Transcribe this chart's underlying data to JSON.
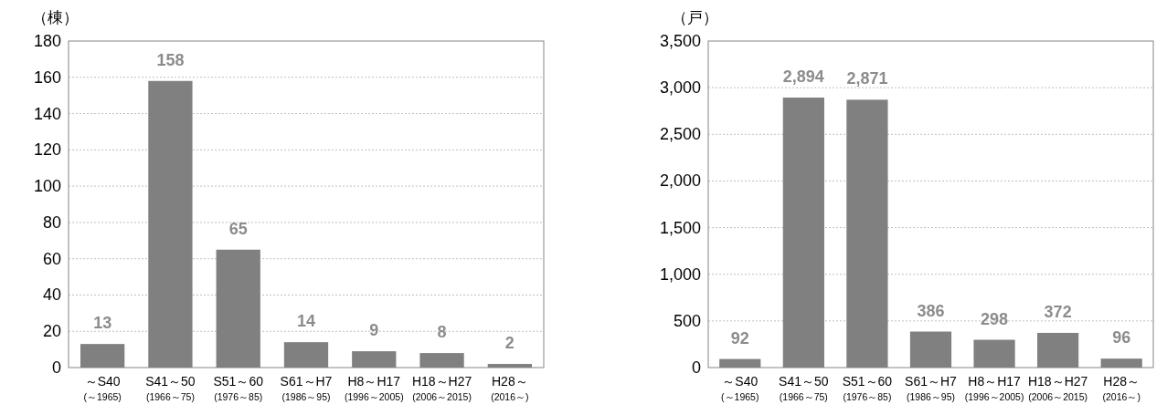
{
  "chart_data": [
    {
      "type": "bar",
      "ylabel": "（棟）",
      "categories": [
        "～S40\n(～1965)",
        "S41～50\n(1966～75)",
        "S51～60\n(1976～85)",
        "S61～H7\n(1986～95)",
        "H8～H17\n(1996～2005)",
        "H18～H27\n(2006～2015)",
        "H28～\n(2016～)"
      ],
      "values": [
        13,
        158,
        65,
        14,
        9,
        8,
        2
      ],
      "color": "#808080",
      "ylim": [
        0,
        180
      ],
      "yticks": [
        0,
        20,
        40,
        60,
        80,
        100,
        120,
        140,
        160,
        180
      ],
      "grid": "y",
      "data_labels": true
    },
    {
      "type": "bar",
      "ylabel": "（戸）",
      "categories": [
        "～S40\n(～1965)",
        "S41～50\n(1966～75)",
        "S51～60\n(1976～85)",
        "S61～H7\n(1986～95)",
        "H8～H17\n(1996～2005)",
        "H18～H27\n(2006～2015)",
        "H28～\n(2016～)"
      ],
      "values": [
        92,
        2894,
        2871,
        386,
        298,
        372,
        96
      ],
      "value_labels": [
        "92",
        "2,894",
        "2,871",
        "386",
        "298",
        "372",
        "96"
      ],
      "color": "#808080",
      "ylim": [
        0,
        3500
      ],
      "yticks": [
        0,
        {
          "value": 500,
          "label": "500"
        },
        {
          "value": 1000,
          "label": "1,000"
        },
        {
          "value": 1500,
          "label": "1,500"
        },
        {
          "value": 2000,
          "label": "2,000"
        },
        {
          "value": 2500,
          "label": "2,500"
        },
        {
          "value": 3000,
          "label": "3,000"
        },
        {
          "value": 3500,
          "label": "3,500"
        }
      ],
      "grid": "y"
    }
  ]
}
